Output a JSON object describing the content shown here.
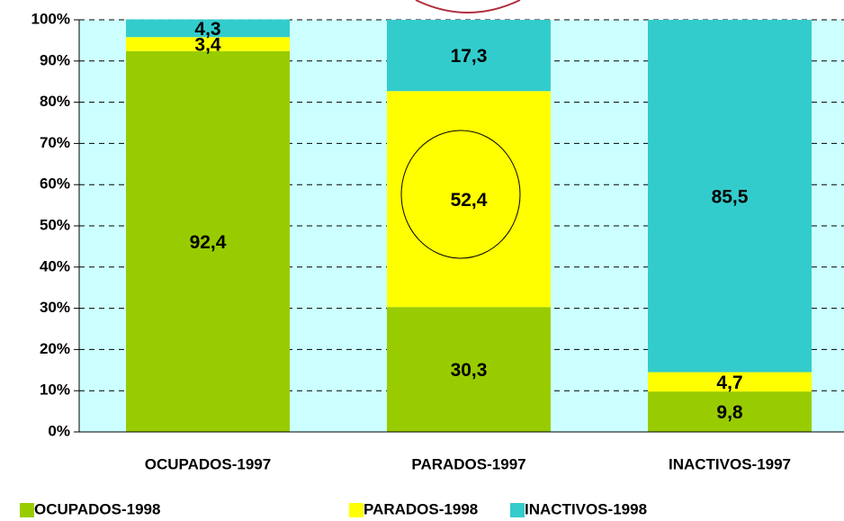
{
  "chart_data": {
    "type": "stacked_bar",
    "categories": [
      "OCUPADOS-1997",
      "PARADOS-1997",
      "INACTIVOS-1997"
    ],
    "series": [
      {
        "name": "OCUPADOS-1998",
        "color": "#99cc00",
        "values": [
          92.4,
          30.3,
          9.8
        ],
        "value_labels": [
          "92,4",
          "30,3",
          "9,8"
        ]
      },
      {
        "name": "PARADOS-1998",
        "color": "#ffff00",
        "values": [
          3.4,
          52.4,
          4.7
        ],
        "value_labels": [
          "3,4",
          "52,4",
          "4,7"
        ]
      },
      {
        "name": "INACTIVOS-1998",
        "color": "#33cccc",
        "values": [
          4.3,
          17.3,
          85.5
        ],
        "value_labels": [
          "4,3",
          "17,3",
          "85,5"
        ]
      }
    ],
    "ylim": [
      0,
      100
    ],
    "yticks": [
      {
        "value": 0,
        "label": "0%"
      },
      {
        "value": 10,
        "label": "10%"
      },
      {
        "value": 20,
        "label": "20%"
      },
      {
        "value": 30,
        "label": "30%"
      },
      {
        "value": 40,
        "label": "40%"
      },
      {
        "value": 50,
        "label": "50%"
      },
      {
        "value": 60,
        "label": "60%"
      },
      {
        "value": 70,
        "label": "70%"
      },
      {
        "value": 80,
        "label": "80%"
      },
      {
        "value": 90,
        "label": "90%"
      },
      {
        "value": 100,
        "label": "100%"
      }
    ],
    "grid": true,
    "background": "#ccffff",
    "legend": "bottom"
  }
}
